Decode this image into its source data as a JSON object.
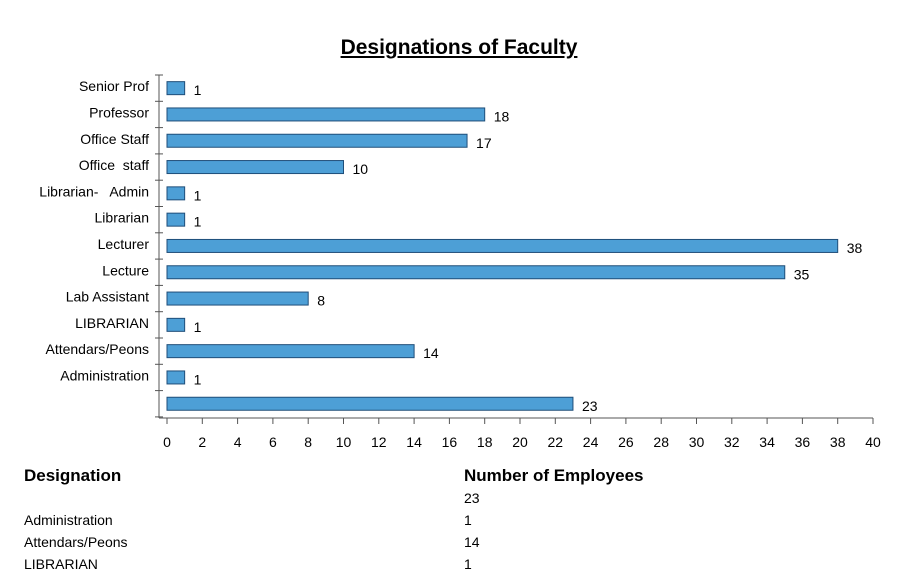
{
  "chart_data": {
    "type": "bar",
    "orientation": "horizontal",
    "title": "Designations of Faculty",
    "xlabel": "",
    "ylabel": "",
    "xlim": [
      0,
      40
    ],
    "x_ticks": [
      0,
      2,
      4,
      6,
      8,
      10,
      12,
      14,
      16,
      18,
      20,
      22,
      24,
      26,
      28,
      30,
      32,
      34,
      36,
      38,
      40
    ],
    "categories": [
      "Senior Prof",
      "Professor",
      "Office Staff",
      "Office  staff",
      "Librarian-   Admin",
      "Librarian",
      "Lecturer",
      "Lecture",
      "Lab Assistant",
      "LIBRARIAN",
      "Attendars/Peons",
      "Administration",
      ""
    ],
    "values": [
      1,
      18,
      17,
      10,
      1,
      1,
      38,
      35,
      8,
      1,
      14,
      1,
      23
    ],
    "bar_color": "#4d9fd6",
    "grid": false,
    "legend": "none"
  },
  "table": {
    "headers": {
      "designation": "Designation",
      "count": "Number of Employees"
    },
    "rows": [
      {
        "name": "",
        "count": "23"
      },
      {
        "name": "Administration",
        "count": "1"
      },
      {
        "name": "Attendars/Peons",
        "count": "14"
      },
      {
        "name": "LIBRARIAN",
        "count": "1"
      }
    ]
  }
}
